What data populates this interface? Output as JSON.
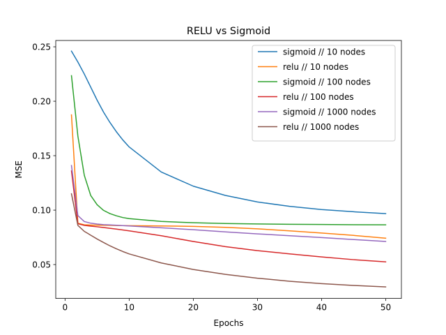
{
  "chart_data": {
    "type": "line",
    "title": "RELU vs Sigmoid",
    "xlabel": "Epochs",
    "ylabel": "MSE",
    "xlim": [
      -1.45,
      52.45
    ],
    "ylim": [
      0.0189,
      0.2558
    ],
    "xticks": [
      0,
      10,
      20,
      30,
      40,
      50
    ],
    "yticks": [
      0.05,
      0.1,
      0.15,
      0.2,
      0.25
    ],
    "ytick_labels": [
      "0.05",
      "0.10",
      "0.15",
      "0.20",
      "0.25"
    ],
    "grid": false,
    "legend_position": "top-right",
    "x": [
      1,
      2,
      3,
      4,
      5,
      6,
      7,
      8,
      9,
      10,
      15,
      20,
      25,
      30,
      35,
      40,
      45,
      50
    ],
    "series": [
      {
        "name": "sigmoid // 10 nodes",
        "color": "#1f77b4",
        "values": [
          0.246,
          0.236,
          0.225,
          0.213,
          0.201,
          0.19,
          0.1805,
          0.172,
          0.1645,
          0.158,
          0.135,
          0.122,
          0.1135,
          0.1075,
          0.1035,
          0.1005,
          0.0985,
          0.0968
        ]
      },
      {
        "name": "relu // 10 nodes",
        "color": "#ff7f0e",
        "values": [
          0.1875,
          0.088,
          0.0865,
          0.0863,
          0.0862,
          0.0861,
          0.086,
          0.0859,
          0.0858,
          0.0857,
          0.0855,
          0.0851,
          0.0842,
          0.0828,
          0.081,
          0.079,
          0.0768,
          0.0742
        ]
      },
      {
        "name": "sigmoid // 100 nodes",
        "color": "#2ca02c",
        "values": [
          0.2235,
          0.168,
          0.132,
          0.1135,
          0.105,
          0.0998,
          0.0968,
          0.0948,
          0.0932,
          0.0922,
          0.0896,
          0.0884,
          0.0877,
          0.0873,
          0.087,
          0.0868,
          0.0866,
          0.0865
        ]
      },
      {
        "name": "relu // 100 nodes",
        "color": "#d62728",
        "values": [
          0.136,
          0.0875,
          0.086,
          0.0853,
          0.0847,
          0.084,
          0.0833,
          0.0826,
          0.0818,
          0.081,
          0.0765,
          0.0712,
          0.0665,
          0.0628,
          0.0598,
          0.057,
          0.0545,
          0.0525
        ]
      },
      {
        "name": "sigmoid // 1000 nodes",
        "color": "#9467bd",
        "values": [
          0.141,
          0.095,
          0.0895,
          0.088,
          0.0872,
          0.0867,
          0.0864,
          0.0861,
          0.0858,
          0.0855,
          0.0838,
          0.082,
          0.08,
          0.0782,
          0.0765,
          0.0748,
          0.073,
          0.0712
        ]
      },
      {
        "name": "relu // 1000 nodes",
        "color": "#8c564b",
        "values": [
          0.115,
          0.086,
          0.0805,
          0.077,
          0.0735,
          0.0703,
          0.0672,
          0.0645,
          0.062,
          0.0598,
          0.0515,
          0.0455,
          0.041,
          0.0375,
          0.0347,
          0.0325,
          0.0308,
          0.0295
        ]
      }
    ]
  }
}
